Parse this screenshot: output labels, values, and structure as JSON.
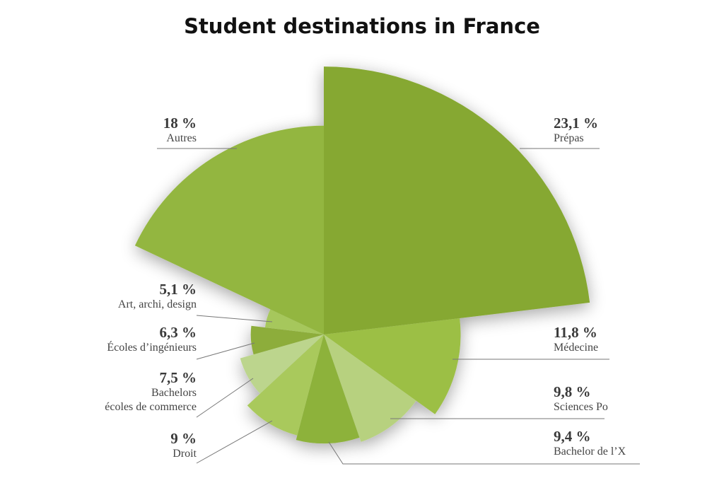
{
  "chart_data": {
    "type": "polar-pie",
    "title": "Student destinations in France",
    "categories": [
      "Prépas",
      "Médecine",
      "Sciences Po",
      "Bachelor de l’X",
      "Droit",
      "Bachelors\nécoles de commerce",
      "Écoles d’ingénieurs",
      "Art, archi, design",
      "Autres"
    ],
    "values": [
      23.1,
      11.8,
      9.8,
      9.4,
      9,
      7.5,
      6.3,
      5.1,
      18
    ],
    "value_labels": [
      "23,1 %",
      "11,8 %",
      "9,8 %",
      "9,4 %",
      "9 %",
      "7,5 %",
      "6,3 %",
      "5,1 %",
      "18 %"
    ],
    "colors": [
      "#86a832",
      "#9cbf45",
      "#b7d17f",
      "#8db23a",
      "#a9c95c",
      "#bcd58d",
      "#8dad3b",
      "#a6c75c",
      "#93b63f"
    ]
  }
}
